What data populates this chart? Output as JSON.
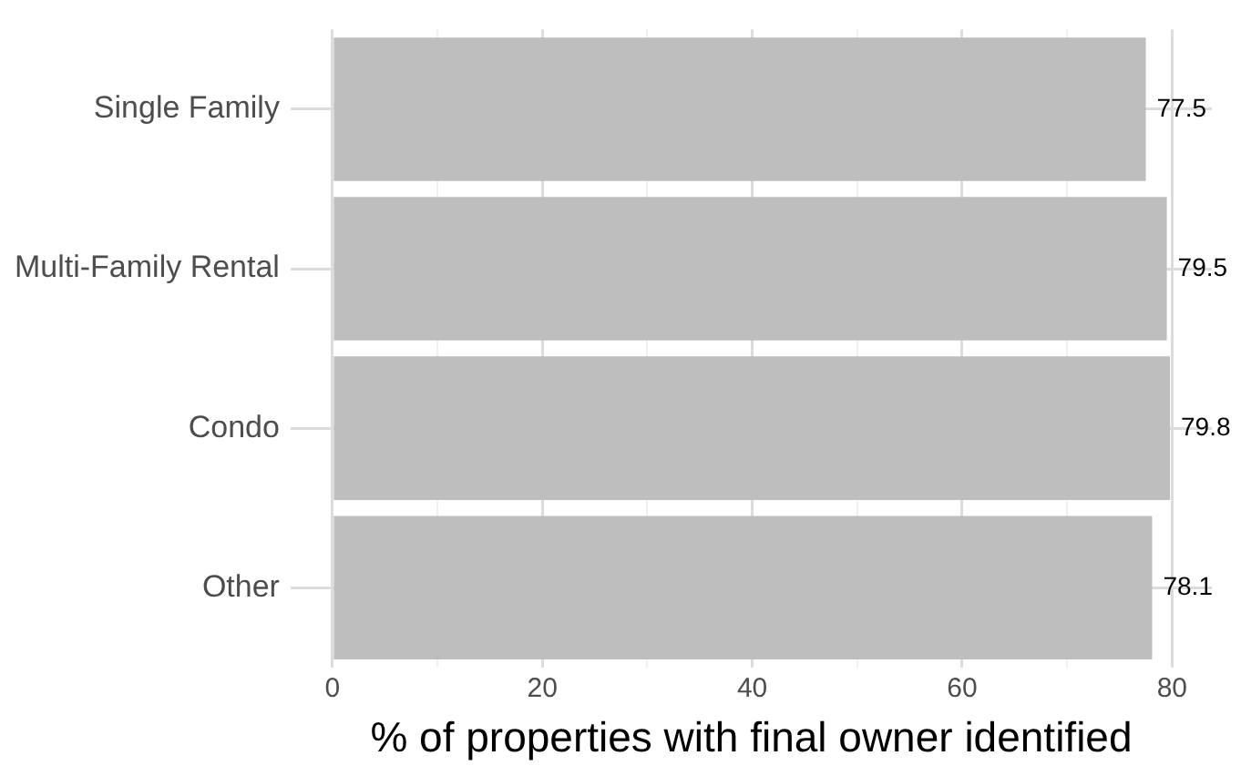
{
  "chart_data": {
    "type": "bar",
    "orientation": "horizontal",
    "xlabel": "% of properties with final owner identified",
    "categories": [
      "Single Family",
      "Multi-Family Rental",
      "Condo",
      "Other"
    ],
    "values": [
      77.5,
      79.5,
      79.8,
      78.1
    ],
    "color": "#bebebe",
    "xlim": [
      -3.99,
      83.79
    ],
    "xticks": [
      0,
      {
        "value": 10,
        "label": null
      },
      20,
      {
        "value": 30,
        "label": null
      },
      40,
      {
        "value": 50,
        "label": null
      },
      60,
      {
        "value": 70,
        "label": null
      },
      80
    ],
    "grid": true,
    "data_labels": true
  }
}
